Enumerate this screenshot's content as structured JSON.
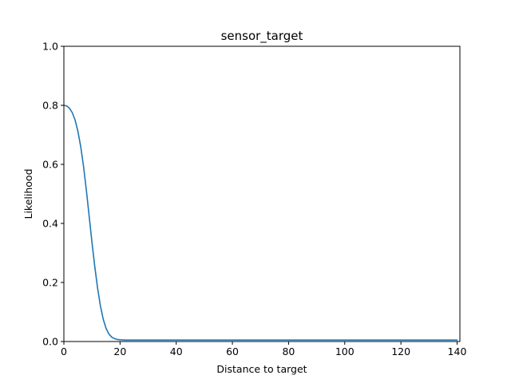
{
  "chart_data": {
    "type": "line",
    "title": "sensor_target",
    "xlabel": "Distance to target",
    "ylabel": "Likelihood",
    "xlim": [
      0,
      141
    ],
    "ylim": [
      0,
      1.0
    ],
    "xticks": [
      "0",
      "20",
      "40",
      "60",
      "80",
      "100",
      "120",
      "140"
    ],
    "yticks": [
      "0.0",
      "0.2",
      "0.4",
      "0.6",
      "0.8",
      "1.0"
    ],
    "grid": false,
    "legend": "none",
    "series": [
      {
        "color": "#1f77b4",
        "x": [
          0,
          1,
          2,
          3,
          4,
          5,
          6,
          7,
          8,
          9,
          10,
          11,
          12,
          13,
          14,
          15,
          16,
          17,
          18,
          19,
          20,
          22,
          25,
          30,
          40,
          60,
          80,
          100,
          120,
          140
        ],
        "y": [
          0.8,
          0.798,
          0.79,
          0.775,
          0.75,
          0.712,
          0.66,
          0.593,
          0.513,
          0.425,
          0.336,
          0.254,
          0.181,
          0.121,
          0.076,
          0.045,
          0.026,
          0.015,
          0.01,
          0.007,
          0.006,
          0.005,
          0.005,
          0.005,
          0.005,
          0.005,
          0.005,
          0.005,
          0.005,
          0.005
        ]
      }
    ]
  }
}
